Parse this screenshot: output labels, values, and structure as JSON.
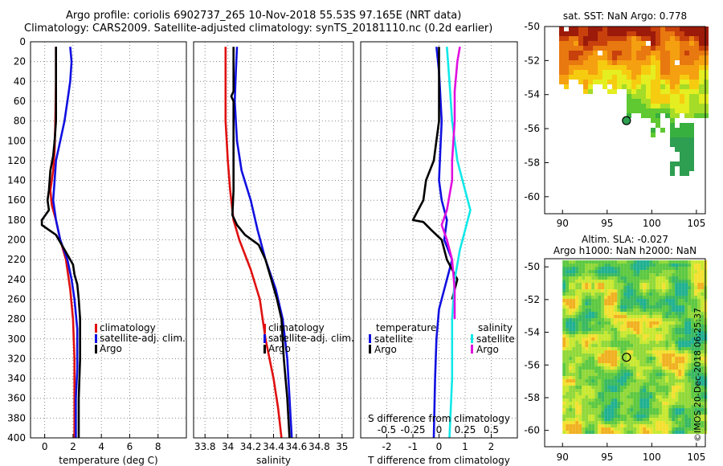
{
  "header": {
    "title_line1": "Argo profile: coriolis 6902737_265 10-Nov-2018 55.53S 97.165E (NRT data)",
    "title_line2": "Climatology: CARS2009. Satellite-adjusted climatology: synTS_20181110.nc (0.2d earlier)"
  },
  "watermark": "©IMOS 20-Dec-2018 06:25:37",
  "colors": {
    "climatology": "#e01010",
    "satellite": "#1010e0",
    "argo": "#000000",
    "sal_sat": "#10e8e8",
    "sal_argo": "#e010e0"
  },
  "chart_data": [
    {
      "type": "line",
      "id": "temperature",
      "xlabel": "temperature (deg C)",
      "xlim": [
        -1,
        10
      ],
      "xticks": [
        0,
        2,
        4,
        6,
        8
      ],
      "xtick_labels": [
        "0",
        "2",
        "4",
        "6",
        "8"
      ],
      "ylim": [
        0,
        400
      ],
      "yticks": [
        0,
        20,
        40,
        60,
        80,
        100,
        120,
        140,
        160,
        180,
        200,
        220,
        240,
        260,
        280,
        300,
        320,
        340,
        360,
        380,
        400
      ],
      "ytick_labels": [
        "0",
        "20",
        "40",
        "60",
        "80",
        "100",
        "120",
        "140",
        "160",
        "180",
        "200",
        "220",
        "240",
        "260",
        "280",
        "300",
        "320",
        "340",
        "360",
        "380",
        "400"
      ],
      "legend": [
        "climatology",
        "satellite-adj. clim.",
        "Argo"
      ],
      "series": [
        {
          "name": "climatology",
          "key": "climatology",
          "points": [
            [
              0.8,
              5
            ],
            [
              0.8,
              40
            ],
            [
              0.75,
              80
            ],
            [
              0.7,
              110
            ],
            [
              0.6,
              130
            ],
            [
              0.4,
              150
            ],
            [
              0.5,
              165
            ],
            [
              0.8,
              180
            ],
            [
              1.1,
              200
            ],
            [
              1.5,
              220
            ],
            [
              1.8,
              250
            ],
            [
              2.0,
              280
            ],
            [
              2.1,
              320
            ],
            [
              2.1,
              360
            ],
            [
              2.1,
              400
            ]
          ]
        },
        {
          "name": "satellite-adj. clim.",
          "key": "satellite",
          "points": [
            [
              1.8,
              5
            ],
            [
              1.9,
              20
            ],
            [
              1.8,
              40
            ],
            [
              1.6,
              60
            ],
            [
              1.4,
              80
            ],
            [
              1.1,
              100
            ],
            [
              0.8,
              120
            ],
            [
              0.7,
              140
            ],
            [
              0.6,
              160
            ],
            [
              0.8,
              180
            ],
            [
              1.1,
              200
            ],
            [
              1.6,
              220
            ],
            [
              1.9,
              240
            ],
            [
              2.1,
              260
            ],
            [
              2.3,
              290
            ],
            [
              2.3,
              330
            ],
            [
              2.2,
              360
            ],
            [
              2.2,
              400
            ]
          ]
        },
        {
          "name": "Argo",
          "key": "argo",
          "points": [
            [
              0.8,
              5
            ],
            [
              0.8,
              40
            ],
            [
              0.8,
              80
            ],
            [
              0.7,
              100
            ],
            [
              0.6,
              115
            ],
            [
              0.4,
              130
            ],
            [
              0.3,
              150
            ],
            [
              0.2,
              160
            ],
            [
              0.3,
              170
            ],
            [
              -0.1,
              178
            ],
            [
              -0.2,
              180
            ],
            [
              -0.2,
              185
            ],
            [
              0.3,
              190
            ],
            [
              0.8,
              195
            ],
            [
              1.2,
              205
            ],
            [
              1.6,
              215
            ],
            [
              2.0,
              225
            ],
            [
              2.1,
              235
            ],
            [
              2.3,
              245
            ],
            [
              2.4,
              260
            ],
            [
              2.5,
              280
            ],
            [
              2.5,
              320
            ],
            [
              2.4,
              360
            ],
            [
              2.4,
              400
            ]
          ]
        }
      ]
    },
    {
      "type": "line",
      "id": "salinity",
      "xlabel": "salinity",
      "xlim": [
        33.7,
        35.1
      ],
      "xticks": [
        33.8,
        34,
        34.2,
        34.4,
        34.6,
        34.8,
        35
      ],
      "xtick_labels": [
        "33.8",
        "34",
        "34.2",
        "34.4",
        "34.6",
        "34.8",
        "35"
      ],
      "ylim": [
        0,
        400
      ],
      "legend": [
        "climatology",
        "satellite-adj. clim.",
        "Argo"
      ],
      "series": [
        {
          "name": "climatology",
          "key": "climatology",
          "points": [
            [
              33.98,
              5
            ],
            [
              33.98,
              80
            ],
            [
              34.0,
              120
            ],
            [
              34.02,
              150
            ],
            [
              34.05,
              180
            ],
            [
              34.1,
              200
            ],
            [
              34.2,
              230
            ],
            [
              34.28,
              260
            ],
            [
              34.33,
              300
            ],
            [
              34.4,
              340
            ],
            [
              34.44,
              370
            ],
            [
              34.47,
              400
            ]
          ]
        },
        {
          "name": "satellite-adj. clim.",
          "key": "satellite",
          "points": [
            [
              34.08,
              5
            ],
            [
              34.07,
              30
            ],
            [
              34.06,
              60
            ],
            [
              34.08,
              100
            ],
            [
              34.12,
              130
            ],
            [
              34.2,
              160
            ],
            [
              34.26,
              190
            ],
            [
              34.33,
              220
            ],
            [
              34.42,
              250
            ],
            [
              34.48,
              280
            ],
            [
              34.52,
              320
            ],
            [
              34.54,
              360
            ],
            [
              34.56,
              400
            ]
          ]
        },
        {
          "name": "Argo",
          "key": "argo",
          "points": [
            [
              34.05,
              5
            ],
            [
              34.05,
              50
            ],
            [
              34.03,
              55
            ],
            [
              34.05,
              60
            ],
            [
              34.05,
              150
            ],
            [
              34.04,
              175
            ],
            [
              34.08,
              185
            ],
            [
              34.15,
              195
            ],
            [
              34.27,
              205
            ],
            [
              34.33,
              220
            ],
            [
              34.38,
              240
            ],
            [
              34.43,
              260
            ],
            [
              34.47,
              280
            ],
            [
              34.49,
              320
            ],
            [
              34.52,
              360
            ],
            [
              34.54,
              400
            ]
          ]
        }
      ]
    },
    {
      "type": "line",
      "id": "difference",
      "xlabel": "T difference from climatology",
      "xlim": [
        -3,
        3
      ],
      "xticks": [
        -2,
        -1,
        0,
        1,
        2
      ],
      "xtick_labels": [
        "-2",
        "-1",
        "0",
        "1",
        "2"
      ],
      "top_label": "S difference from climatology",
      "s_ticks": [
        -0.5,
        -0.25,
        0,
        0.25,
        0.5
      ],
      "s_tick_labels": [
        "-0.5",
        "-0.25",
        "0",
        "0.25",
        "0.5"
      ],
      "ylim": [
        0,
        400
      ],
      "legend_left_title": "temperature",
      "legend_left": [
        "satellite",
        "Argo"
      ],
      "legend_right_title": "salinity",
      "legend_right": [
        "satellite",
        "Argo"
      ],
      "series": [
        {
          "name": "T satellite",
          "key": "satellite",
          "points": [
            [
              -0.1,
              5
            ],
            [
              0,
              30
            ],
            [
              0.1,
              80
            ],
            [
              0.05,
              110
            ],
            [
              0,
              140
            ],
            [
              0.1,
              160
            ],
            [
              0.3,
              180
            ],
            [
              0.2,
              200
            ],
            [
              0.5,
              220
            ],
            [
              0.3,
              240
            ],
            [
              0,
              270
            ],
            [
              -0.1,
              300
            ],
            [
              -0.15,
              340
            ],
            [
              -0.2,
              400
            ]
          ]
        },
        {
          "name": "T Argo",
          "key": "argo",
          "points": [
            [
              0,
              5
            ],
            [
              0,
              80
            ],
            [
              -0.2,
              120
            ],
            [
              -0.5,
              140
            ],
            [
              -0.6,
              160
            ],
            [
              -1.0,
              180
            ],
            [
              -0.6,
              182
            ],
            [
              -0.3,
              190
            ],
            [
              0.1,
              200
            ],
            [
              0.3,
              220
            ],
            [
              0.7,
              240
            ],
            [
              0.5,
              260
            ]
          ]
        },
        {
          "name": "S satellite",
          "key": "sal_sat",
          "points": [
            [
              0.3,
              5
            ],
            [
              0.4,
              40
            ],
            [
              0.5,
              80
            ],
            [
              0.7,
              120
            ],
            [
              1.0,
              150
            ],
            [
              1.2,
              170
            ],
            [
              1.0,
              190
            ],
            [
              0.8,
              210
            ],
            [
              0.6,
              240
            ],
            [
              0.5,
              280
            ],
            [
              0.5,
              340
            ],
            [
              0.4,
              400
            ]
          ]
        },
        {
          "name": "S Argo",
          "key": "sal_argo",
          "points": [
            [
              0.8,
              5
            ],
            [
              0.7,
              20
            ],
            [
              0.6,
              50
            ],
            [
              0.6,
              80
            ],
            [
              0.5,
              120
            ],
            [
              0.5,
              140
            ],
            [
              0.3,
              170
            ],
            [
              0.1,
              185
            ],
            [
              0.3,
              200
            ],
            [
              0.5,
              220
            ],
            [
              0.6,
              250
            ],
            [
              0.6,
              280
            ]
          ]
        }
      ]
    }
  ],
  "maps": [
    {
      "id": "sst",
      "title": "sat. SST: NaN Argo: 0.778",
      "xlim": [
        88,
        106
      ],
      "ylim": [
        -61,
        -50
      ],
      "xticks": [
        90,
        95,
        100,
        105
      ],
      "xtick_labels": [
        "90",
        "95",
        "100",
        "105"
      ],
      "yticks": [
        -50,
        -52,
        -54,
        -56,
        -58,
        -60
      ],
      "ytick_labels": [
        "-50",
        "-52",
        "-54",
        "-56",
        "-58",
        "-60"
      ],
      "argo_marker": [
        97.165,
        -55.53
      ]
    },
    {
      "id": "sla",
      "title_line1": "Altim. SLA: -0.027",
      "title_line2": "Argo h1000: NaN h2000: NaN",
      "xlim": [
        88,
        106
      ],
      "ylim": [
        -61,
        -49.5
      ],
      "xticks": [
        90,
        95,
        100,
        105
      ],
      "xtick_labels": [
        "90",
        "95",
        "100",
        "105"
      ],
      "yticks": [
        -50,
        -52,
        -54,
        -56,
        -58,
        -60
      ],
      "ytick_labels": [
        "-50",
        "-52",
        "-54",
        "-56",
        "-58",
        "-60"
      ],
      "argo_marker": [
        97.165,
        -55.53
      ]
    }
  ]
}
